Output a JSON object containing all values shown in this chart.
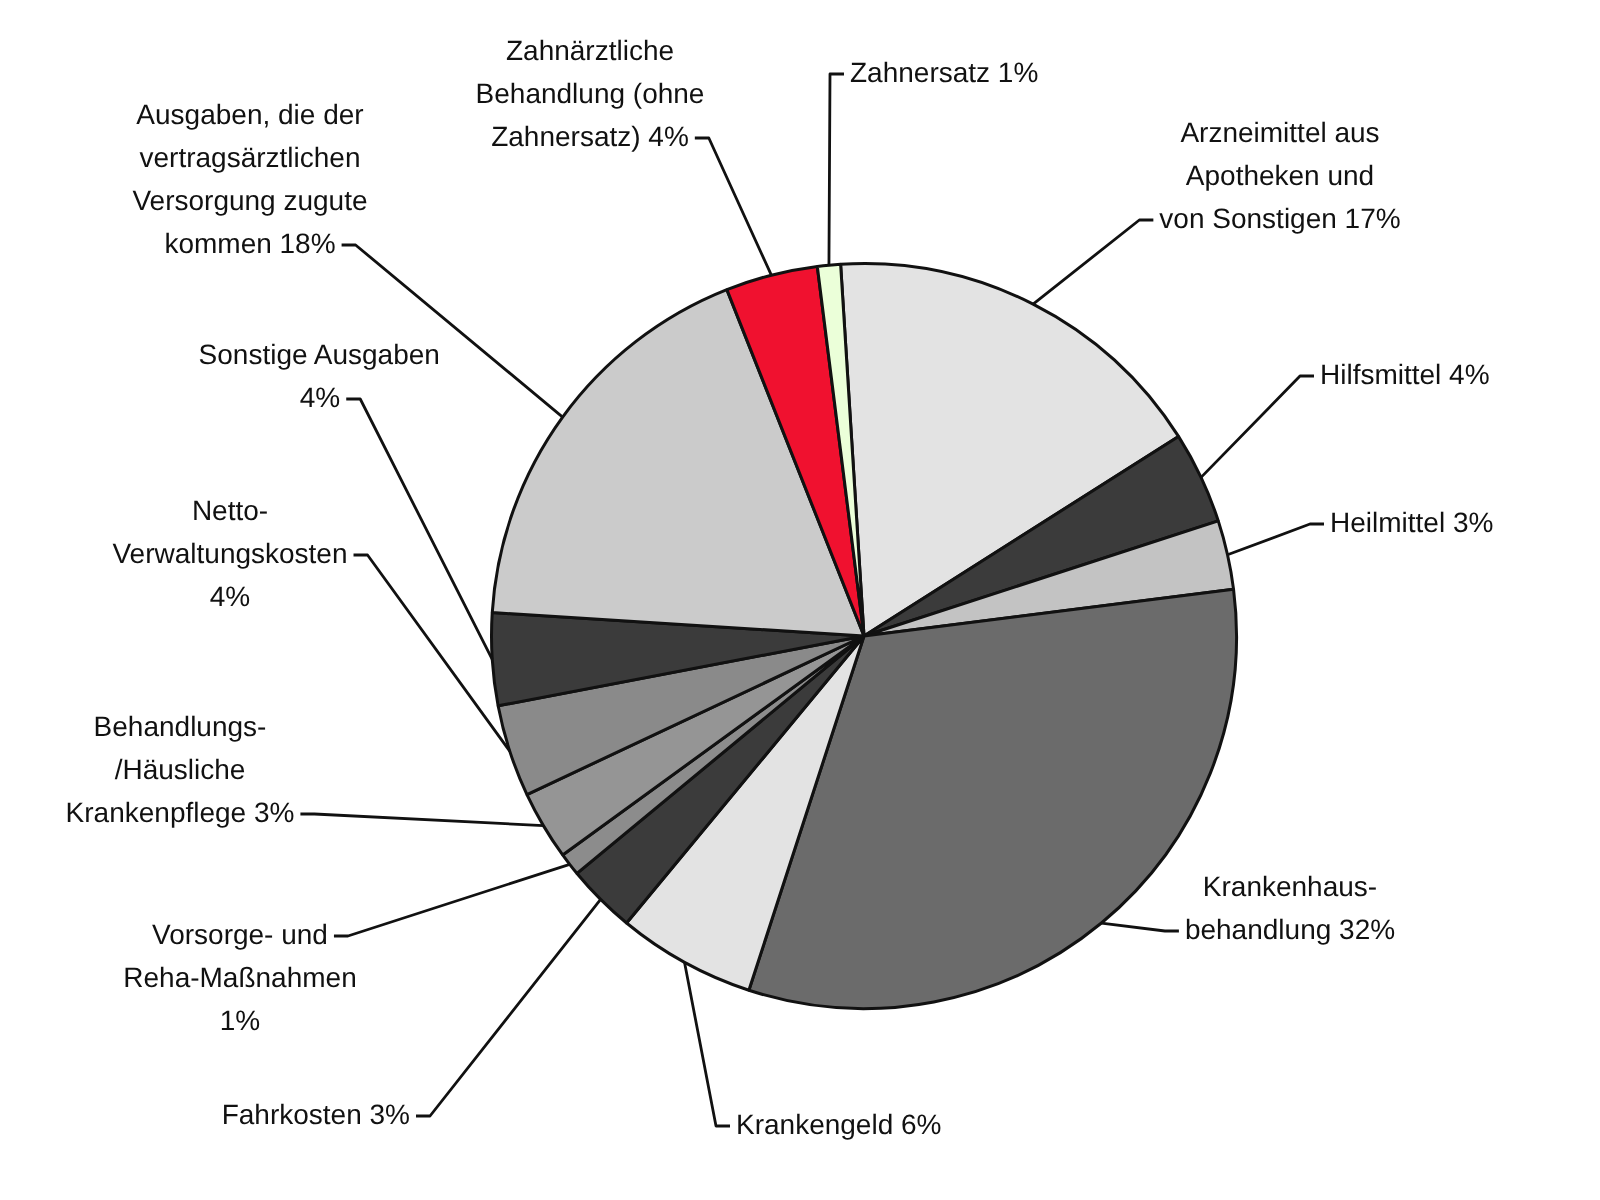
{
  "chart_data": {
    "type": "pie",
    "categories": [
      "Arzneimittel aus Apotheken und von Sonstigen",
      "Hilfsmittel",
      "Heilmittel",
      "Krankenhaus-behandlung",
      "Krankengeld",
      "Fahrkosten",
      "Vorsorge- und Reha-Maßnahmen",
      "Behandlungs-/Häusliche Krankenpflege",
      "Netto-Verwaltungskosten",
      "Sonstige Ausgaben",
      "Ausgaben, die der vertragsärztlichen Versorgung zugute kommen",
      "Zahnärztliche Behandlung (ohne Zahnersatz)",
      "Zahnersatz"
    ],
    "values": [
      17,
      4,
      3,
      32,
      6,
      3,
      1,
      3,
      4,
      4,
      18,
      4,
      1
    ],
    "value_labels": [
      "17%",
      "4%",
      "3%",
      "32%",
      "6%",
      "3%",
      "1%",
      "3%",
      "4%",
      "4%",
      "18%",
      "4%",
      "1%"
    ],
    "colors": [
      "#e3e3e3",
      "#3b3b3b",
      "#c3c3c3",
      "#6b6b6b",
      "#e3e3e3",
      "#3b3b3b",
      "#8c8c8c",
      "#959595",
      "#8a8a8a",
      "#3b3b3b",
      "#cbcbcb",
      "#f0112f",
      "#ebffd9"
    ]
  }
}
